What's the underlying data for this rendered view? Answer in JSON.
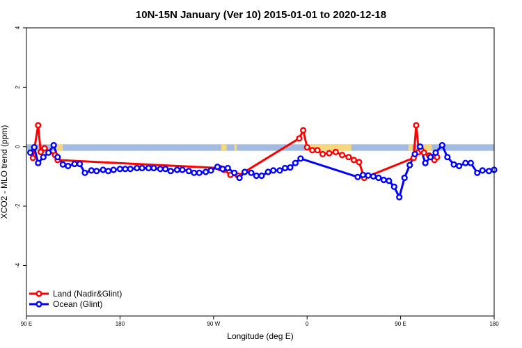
{
  "chart_data": {
    "type": "line",
    "title": "10N-15N January (Ver 10)   2015-01-01 to 2020-12-18",
    "xlabel": "Longitude (deg E)",
    "ylabel": "XCO2 - MLO trend (ppm)",
    "xlim": [
      90,
      450
    ],
    "ylim": [
      -5.7,
      4.0
    ],
    "x_ticks": [
      {
        "value": 90,
        "label": "90 E"
      },
      {
        "value": 162,
        "label": "180"
      },
      {
        "value": 234,
        "label": "90 W"
      },
      {
        "value": 306,
        "label": "0"
      },
      {
        "value": 378,
        "label": "90 E"
      },
      {
        "value": 450,
        "label": "180"
      }
    ],
    "y_ticks": [
      {
        "value": 4,
        "label": "4"
      },
      {
        "value": 2,
        "label": "2"
      },
      {
        "value": 0,
        "label": "0"
      },
      {
        "value": -2,
        "label": "-2"
      },
      {
        "value": -4,
        "label": "-4"
      }
    ],
    "background_band": {
      "y_top": 0.08,
      "y_bottom": -0.14,
      "ocean_color": "#a3bbe0",
      "land_color": "#f6d77e"
    },
    "land_spans": [
      [
        112,
        118
      ],
      [
        240,
        244
      ],
      [
        250,
        252
      ],
      [
        306,
        340
      ],
      [
        384,
        387
      ],
      [
        396,
        402
      ]
    ],
    "series": [
      {
        "name": "Land (Nadir&Glint)",
        "color": "#ff0000",
        "x": [
          95,
          99,
          101,
          104,
          112,
          114,
          239,
          242,
          247,
          253,
          300,
          303,
          306,
          310,
          314,
          318,
          323,
          328,
          333,
          338,
          342,
          346,
          350,
          388,
          390,
          392,
          394,
          396,
          400,
          404,
          406
        ],
        "y": [
          -0.38,
          0.72,
          -0.18,
          -0.05,
          -0.28,
          -0.45,
          -0.72,
          -0.78,
          -0.95,
          -0.98,
          0.28,
          0.55,
          -0.02,
          -0.12,
          -0.12,
          -0.25,
          -0.22,
          -0.18,
          -0.28,
          -0.35,
          -0.45,
          -0.52,
          -1.05,
          -0.38,
          0.72,
          -0.18,
          -0.12,
          -0.2,
          -0.3,
          -0.45,
          -0.35
        ]
      },
      {
        "name": "Ocean (Glint)",
        "color": "#0000ff",
        "x": [
          93,
          96,
          99,
          103,
          107,
          111,
          114,
          118,
          122,
          127,
          131,
          135,
          140,
          144,
          149,
          153,
          157,
          162,
          166,
          170,
          175,
          179,
          184,
          188,
          193,
          197,
          201,
          206,
          210,
          215,
          219,
          223,
          228,
          232,
          237,
          241,
          245,
          250,
          254,
          258,
          263,
          267,
          271,
          276,
          280,
          285,
          289,
          293,
          297,
          301,
          345,
          349,
          353,
          357,
          361,
          365,
          369,
          373,
          377,
          381,
          385,
          389,
          393,
          397,
          401,
          405,
          410,
          414,
          419,
          423,
          428,
          432,
          437,
          441,
          446,
          450
        ],
        "y": [
          -0.2,
          -0.02,
          -0.55,
          -0.35,
          -0.2,
          0.05,
          -0.35,
          -0.6,
          -0.65,
          -0.58,
          -0.58,
          -0.88,
          -0.8,
          -0.82,
          -0.78,
          -0.82,
          -0.78,
          -0.75,
          -0.75,
          -0.75,
          -0.72,
          -0.72,
          -0.72,
          -0.72,
          -0.75,
          -0.75,
          -0.82,
          -0.78,
          -0.78,
          -0.82,
          -0.88,
          -0.88,
          -0.85,
          -0.8,
          -0.68,
          -0.75,
          -0.72,
          -0.88,
          -1.05,
          -0.85,
          -0.88,
          -0.98,
          -0.98,
          -0.85,
          -0.8,
          -0.8,
          -0.72,
          -0.7,
          -0.55,
          -0.4,
          -1.02,
          -0.95,
          -0.97,
          -1.0,
          -1.05,
          -1.12,
          -1.15,
          -1.35,
          -1.7,
          -1.05,
          -0.62,
          -0.25,
          0.0,
          -0.55,
          -0.35,
          -0.2,
          0.05,
          -0.35,
          -0.6,
          -0.65,
          -0.55,
          -0.55,
          -0.88,
          -0.8,
          -0.82,
          -0.78
        ]
      }
    ],
    "legend": {
      "position": "bottom-left",
      "entries": [
        "Land (Nadir&Glint)",
        "Ocean (Glint)"
      ]
    }
  }
}
